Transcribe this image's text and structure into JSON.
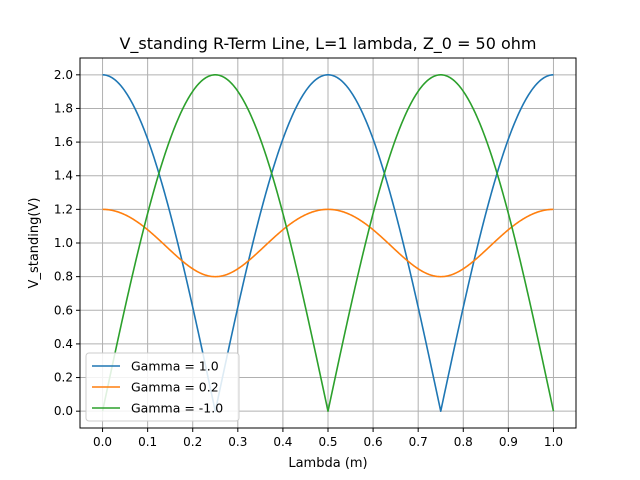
{
  "chart_data": {
    "type": "line",
    "title": "V_standing R-Term Line, L=1 lambda, Z_0 = 50 ohm",
    "xlabel": "Lambda (m)",
    "ylabel": "V_standing(V)",
    "xlim": [
      -0.05,
      1.05
    ],
    "ylim": [
      -0.1,
      2.1
    ],
    "xticks": [
      0.0,
      0.1,
      0.2,
      0.3,
      0.4,
      0.5,
      0.6,
      0.7,
      0.8,
      0.9,
      1.0
    ],
    "xtick_labels": [
      "0.0",
      "0.1",
      "0.2",
      "0.3",
      "0.4",
      "0.5",
      "0.6",
      "0.7",
      "0.8",
      "0.9",
      "1.0"
    ],
    "yticks": [
      0.0,
      0.2,
      0.4,
      0.6,
      0.8,
      1.0,
      1.2,
      1.4,
      1.6,
      1.8,
      2.0
    ],
    "ytick_labels": [
      "0.0",
      "0.2",
      "0.4",
      "0.6",
      "0.8",
      "1.0",
      "1.2",
      "1.4",
      "1.6",
      "1.8",
      "2.0"
    ],
    "grid": true,
    "legend_position": "lower-left",
    "x": [
      0.0,
      0.05,
      0.1,
      0.15,
      0.2,
      0.25,
      0.3,
      0.35,
      0.4,
      0.45,
      0.5,
      0.55,
      0.6,
      0.65,
      0.7,
      0.75,
      0.8,
      0.85,
      0.9,
      0.95,
      1.0
    ],
    "series": [
      {
        "name": "Gamma = 1.0",
        "color": "#1f77b4",
        "values": [
          2.0,
          1.902,
          1.618,
          1.176,
          0.618,
          0.0,
          0.618,
          1.176,
          1.618,
          1.902,
          2.0,
          1.902,
          1.618,
          1.176,
          0.618,
          0.0,
          0.618,
          1.176,
          1.618,
          1.902,
          2.0
        ]
      },
      {
        "name": "Gamma = 0.2",
        "color": "#ff7f0e",
        "values": [
          1.2,
          1.183,
          1.135,
          1.064,
          0.98,
          0.8,
          0.98,
          1.064,
          1.135,
          1.183,
          1.2,
          1.183,
          1.135,
          1.064,
          0.98,
          0.8,
          0.98,
          1.064,
          1.135,
          1.183,
          1.2
        ]
      },
      {
        "name": "Gamma = -1.0",
        "color": "#2ca02c",
        "values": [
          0.0,
          0.618,
          1.176,
          1.618,
          1.902,
          2.0,
          1.902,
          1.618,
          1.176,
          0.618,
          0.0,
          0.618,
          1.176,
          1.618,
          1.902,
          2.0,
          1.902,
          1.618,
          1.176,
          0.618,
          0.0
        ]
      }
    ]
  }
}
